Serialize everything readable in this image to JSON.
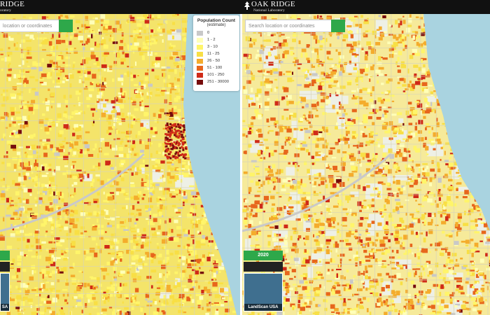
{
  "header": {
    "left_logo": {
      "title": "RIDGE",
      "subtitle": "oratory"
    },
    "right_logo": {
      "title": "OAK RIDGE",
      "subtitle": "National Laboratory"
    }
  },
  "panels": [
    {
      "search_placeholder": "location or coordinates",
      "thumbnail_label": "SA"
    },
    {
      "search_placeholder": "Search location or coordinates",
      "year": "2020",
      "thumbnail_label": "LandScan USA"
    }
  ],
  "legend": {
    "title": "Population Count",
    "subtitle": "(estimate)",
    "items": [
      {
        "label": "0",
        "color": "#c8c8c8"
      },
      {
        "label": "1 - 2",
        "color": "#ffffb8"
      },
      {
        "label": "3 - 10",
        "color": "#fff56a"
      },
      {
        "label": "11 - 25",
        "color": "#f8df45"
      },
      {
        "label": "26 - 50",
        "color": "#f4ac2c"
      },
      {
        "label": "51 - 100",
        "color": "#e7661c"
      },
      {
        "label": "101 - 250",
        "color": "#cf2a18"
      },
      {
        "label": "251 - 30000",
        "color": "#760c0c"
      }
    ]
  }
}
